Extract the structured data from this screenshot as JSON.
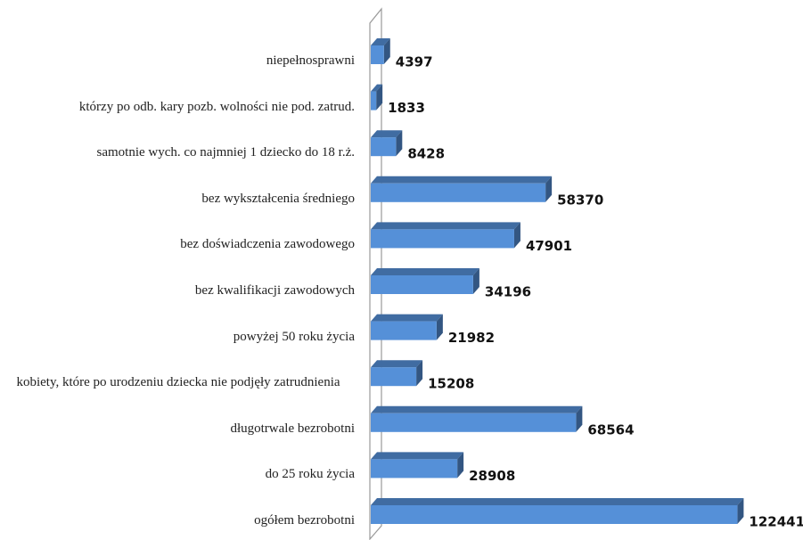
{
  "chart_data": {
    "type": "bar3d-horizontal",
    "categories": [
      "niepełnosprawni",
      "którzy po odb. kary pozb. wolności nie pod. zatrud.",
      "samotnie wych. co najmniej 1 dziecko do 18 r.ż.",
      "bez wykształcenia średniego",
      "bez doświadczenia zawodowego",
      "bez kwalifikacji zawodowych",
      "powyżej 50 roku życia",
      "kobiety, które po urodzeniu dziecka nie podjęły zatrudnienia",
      "długotrwale bezrobotni",
      "do 25 roku życia",
      "ogółem bezrobotni"
    ],
    "values": [
      4397,
      1833,
      8428,
      58370,
      47901,
      34196,
      21982,
      15208,
      68564,
      28908,
      122441
    ],
    "color": "#5590d8",
    "xlim": [
      0,
      125000
    ]
  }
}
